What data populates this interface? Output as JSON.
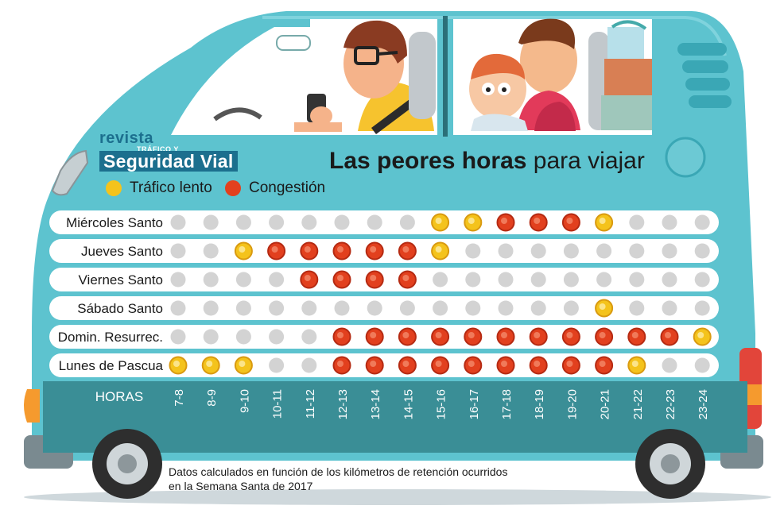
{
  "logo": {
    "line1": "revista",
    "line2": "TRÁFICO Y",
    "line3": "Seguridad Vial"
  },
  "title": {
    "bold": "Las peores horas",
    "regular": "para viajar"
  },
  "legend": [
    {
      "label": "Tráfico lento",
      "color": "#f4c31c"
    },
    {
      "label": "Congestión",
      "color": "#e2401e"
    }
  ],
  "colors": {
    "none": "#d3d3d3",
    "slow": "#f4c31c",
    "congestion": "#e2401e",
    "van_body": "#5dc3cf",
    "van_panel": "#3a8e96"
  },
  "chart_data": {
    "type": "table",
    "xlabel": "HORAS",
    "levels": {
      "0": "none",
      "1": "Tráfico lento",
      "2": "Congestión"
    },
    "columns": [
      "7-8",
      "8-9",
      "9-10",
      "10-11",
      "11-12",
      "12-13",
      "13-14",
      "14-15",
      "15-16",
      "16-17",
      "17-18",
      "18-19",
      "19-20",
      "20-21",
      "21-22",
      "22-23",
      "23-24"
    ],
    "rows": [
      {
        "label": "Miércoles Santo",
        "values": [
          0,
          0,
          0,
          0,
          0,
          0,
          0,
          0,
          1,
          1,
          2,
          2,
          2,
          1,
          0,
          0,
          0
        ]
      },
      {
        "label": "Jueves Santo",
        "values": [
          0,
          0,
          1,
          2,
          2,
          2,
          2,
          2,
          1,
          0,
          0,
          0,
          0,
          0,
          0,
          0,
          0
        ]
      },
      {
        "label": "Viernes Santo",
        "values": [
          0,
          0,
          0,
          0,
          2,
          2,
          2,
          2,
          0,
          0,
          0,
          0,
          0,
          0,
          0,
          0,
          0
        ]
      },
      {
        "label": "Sábado Santo",
        "values": [
          0,
          0,
          0,
          0,
          0,
          0,
          0,
          0,
          0,
          0,
          0,
          0,
          0,
          1,
          0,
          0,
          0
        ]
      },
      {
        "label": "Domin. Resurrec.",
        "values": [
          0,
          0,
          0,
          0,
          0,
          2,
          2,
          2,
          2,
          2,
          2,
          2,
          2,
          2,
          2,
          2,
          1
        ]
      },
      {
        "label": "Lunes de Pascua",
        "values": [
          1,
          1,
          1,
          0,
          0,
          2,
          2,
          2,
          2,
          2,
          2,
          2,
          2,
          2,
          1,
          0,
          0
        ]
      }
    ]
  },
  "note": {
    "line1": "Datos calculados en función de los kilómetros de retención ocurridos",
    "line2": "en la Semana Santa de 2017"
  }
}
